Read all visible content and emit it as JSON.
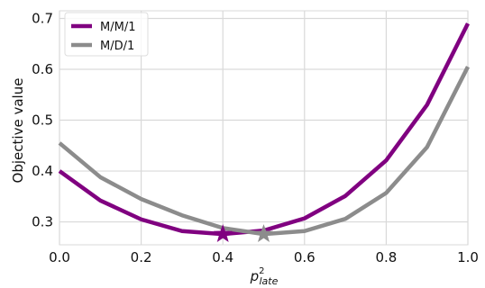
{
  "chart_data": {
    "type": "line",
    "title": "",
    "xlabel_base": "p",
    "xlabel_sup": "2",
    "xlabel_sub": "late",
    "ylabel": "Objective value",
    "xlim": [
      0.0,
      1.0
    ],
    "ylim": [
      0.255,
      0.715
    ],
    "xticks": [
      "0.0",
      "0.2",
      "0.4",
      "0.6",
      "0.8",
      "1.0"
    ],
    "xtick_values": [
      0.0,
      0.2,
      0.4,
      0.6,
      0.8,
      1.0
    ],
    "yticks": [
      "0.3",
      "0.4",
      "0.5",
      "0.6",
      "0.7"
    ],
    "ytick_values": [
      0.3,
      0.4,
      0.5,
      0.6,
      0.7
    ],
    "grid": true,
    "legend_position": "top-left",
    "x": [
      0.0,
      0.1,
      0.2,
      0.3,
      0.4,
      0.5,
      0.6,
      0.7,
      0.8,
      0.9,
      1.0
    ],
    "series": [
      {
        "name": "M/M/1",
        "color": "#800080",
        "values": [
          0.4,
          0.342,
          0.305,
          0.282,
          0.276,
          0.283,
          0.307,
          0.351,
          0.421,
          0.53,
          0.69
        ],
        "min_marker": {
          "x": 0.4,
          "y": 0.276
        }
      },
      {
        "name": "M/D/1",
        "color": "#8c8c8c",
        "values": [
          0.455,
          0.388,
          0.345,
          0.313,
          0.288,
          0.276,
          0.282,
          0.306,
          0.357,
          0.447,
          0.605
        ],
        "min_marker": {
          "x": 0.5,
          "y": 0.276
        }
      }
    ]
  }
}
